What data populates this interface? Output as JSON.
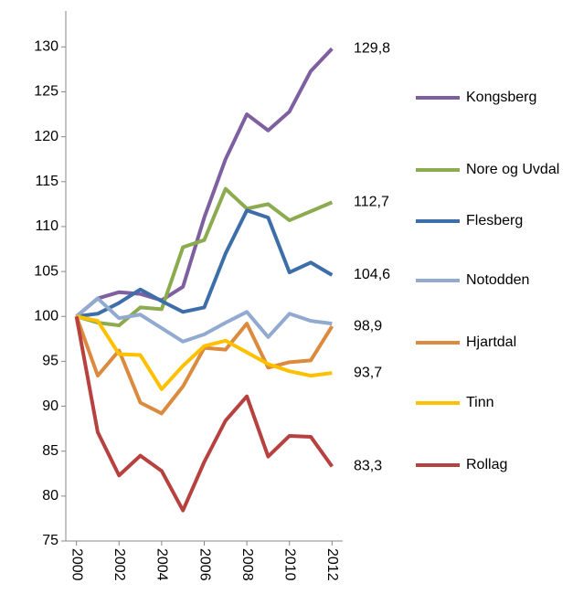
{
  "chart_data": {
    "type": "line",
    "x": [
      2000,
      2001,
      2002,
      2003,
      2004,
      2005,
      2006,
      2007,
      2008,
      2009,
      2010,
      2011,
      2012
    ],
    "xlim": [
      1999.5,
      2012.5
    ],
    "xticks": [
      2000,
      2002,
      2004,
      2006,
      2008,
      2010,
      2012
    ],
    "ylim": [
      75,
      134
    ],
    "yticks": [
      75,
      80,
      85,
      90,
      95,
      100,
      105,
      110,
      115,
      120,
      125,
      130
    ],
    "grid": false,
    "legend": "right",
    "series": [
      {
        "name": "Kongsberg",
        "color": "#7e5fa0",
        "values": [
          100,
          102,
          102.7,
          102.5,
          101.8,
          103.3,
          111,
          117.5,
          122.5,
          120.7,
          122.8,
          127.3,
          129.8
        ],
        "end_label": "129,8"
      },
      {
        "name": "Nore og Uvdal",
        "color": "#8cab4f",
        "values": [
          100,
          99.3,
          99,
          101,
          100.8,
          107.7,
          108.5,
          114.2,
          112,
          112.5,
          110.7,
          111.7,
          112.7
        ],
        "end_label": "112,7"
      },
      {
        "name": "Flesberg",
        "color": "#3e6ea9",
        "values": [
          100,
          100.3,
          101.5,
          103,
          101.7,
          100.5,
          101,
          107,
          111.8,
          111,
          104.9,
          106,
          104.6
        ],
        "end_label": "104,6"
      },
      {
        "name": "Notodden",
        "color": "#92aad0",
        "values": [
          100,
          102,
          99.8,
          100.2,
          98.7,
          97.2,
          98,
          99.3,
          100.5,
          97.7,
          100.3,
          99.5,
          99.2
        ]
      },
      {
        "name": "Hjartdal",
        "color": "#dc8a3d",
        "values": [
          100,
          93.4,
          96.2,
          90.4,
          89.2,
          92.2,
          96.5,
          96.3,
          99.2,
          94.3,
          94.9,
          95.1,
          98.9
        ],
        "end_label": "98,9"
      },
      {
        "name": "Tinn",
        "color": "#ffc000",
        "values": [
          100,
          99.5,
          95.8,
          95.7,
          91.9,
          94.5,
          96.7,
          97.3,
          96,
          94.7,
          93.9,
          93.4,
          93.7
        ],
        "end_label": "93,7"
      },
      {
        "name": "Rollag",
        "color": "#b7413e",
        "values": [
          100,
          87.1,
          82.3,
          84.5,
          82.8,
          78.4,
          83.8,
          88.4,
          91.1,
          84.4,
          86.7,
          86.6,
          83.3
        ],
        "end_label": "83,3"
      }
    ]
  }
}
